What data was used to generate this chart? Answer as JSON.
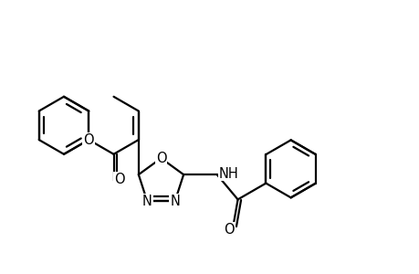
{
  "background_color": "#ffffff",
  "line_color": "#000000",
  "line_width": 1.6,
  "font_size": 10.5,
  "figsize": [
    4.6,
    3.0
  ],
  "dpi": 100,
  "xlim": [
    -4.2,
    4.8
  ],
  "ylim": [
    -2.2,
    2.2
  ]
}
